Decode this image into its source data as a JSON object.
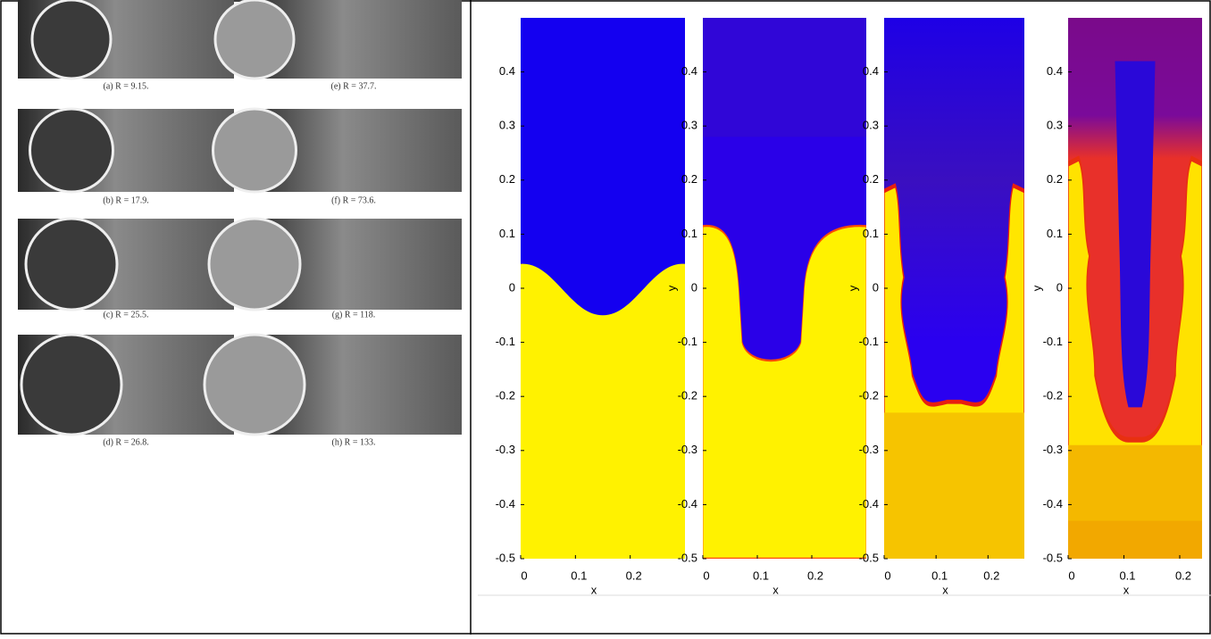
{
  "photos": {
    "rows": [
      [
        "(a)   R = 9.15.",
        "(e)   R = 37.7."
      ],
      [
        "(b)   R = 17.9.",
        "(f)   R = 73.6."
      ],
      [
        "(c)   R = 25.5.",
        "(g)   R = 118."
      ],
      [
        "(d)   R = 26.8.",
        "(h)   R = 133."
      ]
    ]
  },
  "plots": [
    {
      "xlabel": "x",
      "xlim": [
        0,
        0.3
      ],
      "ylim": [
        -0.5,
        0.5
      ],
      "xticks": [
        0,
        0.1,
        0.2
      ],
      "yticks": [
        0.4,
        0.3,
        0.2,
        0.1,
        0,
        -0.1,
        -0.2,
        -0.3,
        -0.4,
        -0.5
      ]
    },
    {
      "xlabel": "x",
      "ylabel": "y",
      "xlim": [
        0,
        0.3
      ],
      "ylim": [
        -0.5,
        0.5
      ],
      "xticks": [
        0,
        0.1,
        0.2
      ],
      "yticks": [
        0.4,
        0.3,
        0.2,
        0.1,
        0,
        -0.1,
        -0.2,
        -0.3,
        -0.4,
        -0.5
      ]
    },
    {
      "xlabel": "x",
      "ylabel": "y",
      "xlim": [
        0,
        0.27
      ],
      "ylim": [
        -0.5,
        0.5
      ],
      "xticks": [
        0,
        0.1,
        0.2
      ],
      "yticks": [
        0.4,
        0.3,
        0.2,
        0.1,
        0,
        -0.1,
        -0.2,
        -0.3,
        -0.4,
        -0.5
      ]
    },
    {
      "xlabel": "x",
      "ylabel": "y",
      "xlim": [
        0,
        0.24
      ],
      "ylim": [
        -0.5,
        0.5
      ],
      "xticks": [
        0,
        0.1,
        0.2
      ],
      "yticks": [
        0.4,
        0.3,
        0.2,
        0.1,
        0,
        -0.1,
        -0.2,
        -0.3,
        -0.4,
        -0.5
      ]
    }
  ]
}
